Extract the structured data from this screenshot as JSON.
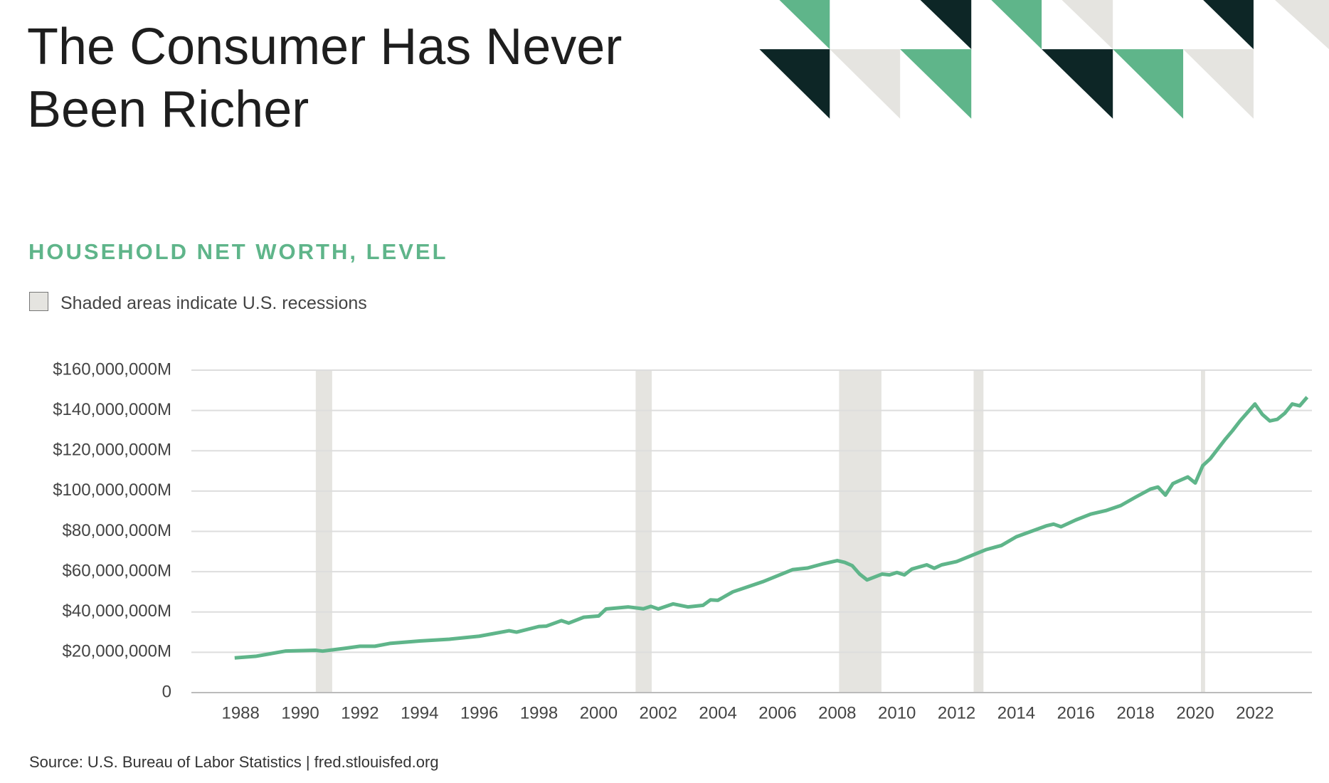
{
  "chart_data": {
    "type": "line",
    "title": "The Consumer Has Never Been Richer",
    "subtitle": "HOUSEHOLD NET WORTH, LEVEL",
    "recession_note": "Shaded areas indicate U.S. recessions",
    "source": "Source: U.S. Bureau of Labor Statistics  |  fred.stlouisfed.org",
    "color": "#5fb58a",
    "recession_color": "#e5e4e0",
    "recessions": [
      [
        1990.52,
        1991.07
      ],
      [
        2001.24,
        2001.78
      ],
      [
        2008.06,
        2009.48
      ],
      [
        2012.57,
        2012.9
      ],
      [
        2020.19,
        2020.33
      ]
    ],
    "x": [
      1987.8,
      1988.5,
      1989.5,
      1990.5,
      1990.75,
      1991.5,
      1992,
      1992.5,
      1993,
      1994,
      1995,
      1996,
      1997,
      1997.25,
      1998,
      1998.25,
      1998.75,
      1999,
      1999.5,
      2000,
      2000.25,
      2001,
      2001.5,
      2001.75,
      2002,
      2002.5,
      2003,
      2003.5,
      2003.75,
      2004,
      2004.5,
      2005,
      2005.5,
      2006,
      2006.5,
      2007,
      2007.5,
      2008,
      2008.25,
      2008.5,
      2008.75,
      2009,
      2009.5,
      2009.75,
      2010,
      2010.25,
      2010.5,
      2011,
      2011.25,
      2011.5,
      2012,
      2012.5,
      2013,
      2013.5,
      2014,
      2014.5,
      2015,
      2015.25,
      2015.5,
      2016,
      2016.5,
      2017,
      2017.5,
      2018,
      2018.5,
      2018.75,
      2019,
      2019.25,
      2019.5,
      2019.75,
      2020,
      2020.25,
      2020.5,
      2021,
      2021.25,
      2021.5,
      2022,
      2022.25,
      2022.5,
      2022.75,
      2023,
      2023.25,
      2023.5,
      2023.75
    ],
    "values": [
      17200000,
      18000000,
      20600000,
      21000000,
      20600000,
      22000000,
      23000000,
      23000000,
      24400000,
      25600000,
      26500000,
      28000000,
      30700000,
      30000000,
      32800000,
      33000000,
      35700000,
      34500000,
      37400000,
      38000000,
      41500000,
      42500000,
      41600000,
      42800000,
      41500000,
      44000000,
      42500000,
      43300000,
      46000000,
      45800000,
      50000000,
      52500000,
      55000000,
      58000000,
      61000000,
      61800000,
      63800000,
      65500000,
      64600000,
      63000000,
      58800000,
      55900000,
      58800000,
      58400000,
      59600000,
      58400000,
      61300000,
      63400000,
      61700000,
      63400000,
      65000000,
      68000000,
      71000000,
      73000000,
      77300000,
      80000000,
      82700000,
      83600000,
      82300000,
      85700000,
      88600000,
      90300000,
      92800000,
      97000000,
      101000000,
      102000000,
      98000000,
      103700000,
      105400000,
      107000000,
      104000000,
      112600000,
      116000000,
      125600000,
      130000000,
      134800000,
      143200000,
      138000000,
      134800000,
      135600000,
      138600000,
      143200000,
      142300000,
      146600000
    ],
    "xlim": [
      1986.35,
      2023.91
    ],
    "xticks": [
      1988,
      1990,
      1992,
      1994,
      1996,
      1998,
      2000,
      2002,
      2004,
      2006,
      2008,
      2010,
      2012,
      2014,
      2016,
      2018,
      2020,
      2022
    ],
    "ylim": [
      0,
      160000000
    ],
    "yticks": [
      0,
      {
        "value": 20000000,
        "label": "$20,000,000M"
      },
      {
        "value": 40000000,
        "label": "$40,000,000M"
      },
      {
        "value": 60000000,
        "label": "$60,000,000M"
      },
      {
        "value": 80000000,
        "label": "$80,000,000M"
      },
      {
        "value": 100000000,
        "label": "$100,000,000M"
      },
      {
        "value": 120000000,
        "label": "$120,000,000M"
      },
      {
        "value": 140000000,
        "label": "$140,000,000M"
      },
      {
        "value": 160000000,
        "label": "$160,000,000M"
      }
    ],
    "grid": true
  }
}
